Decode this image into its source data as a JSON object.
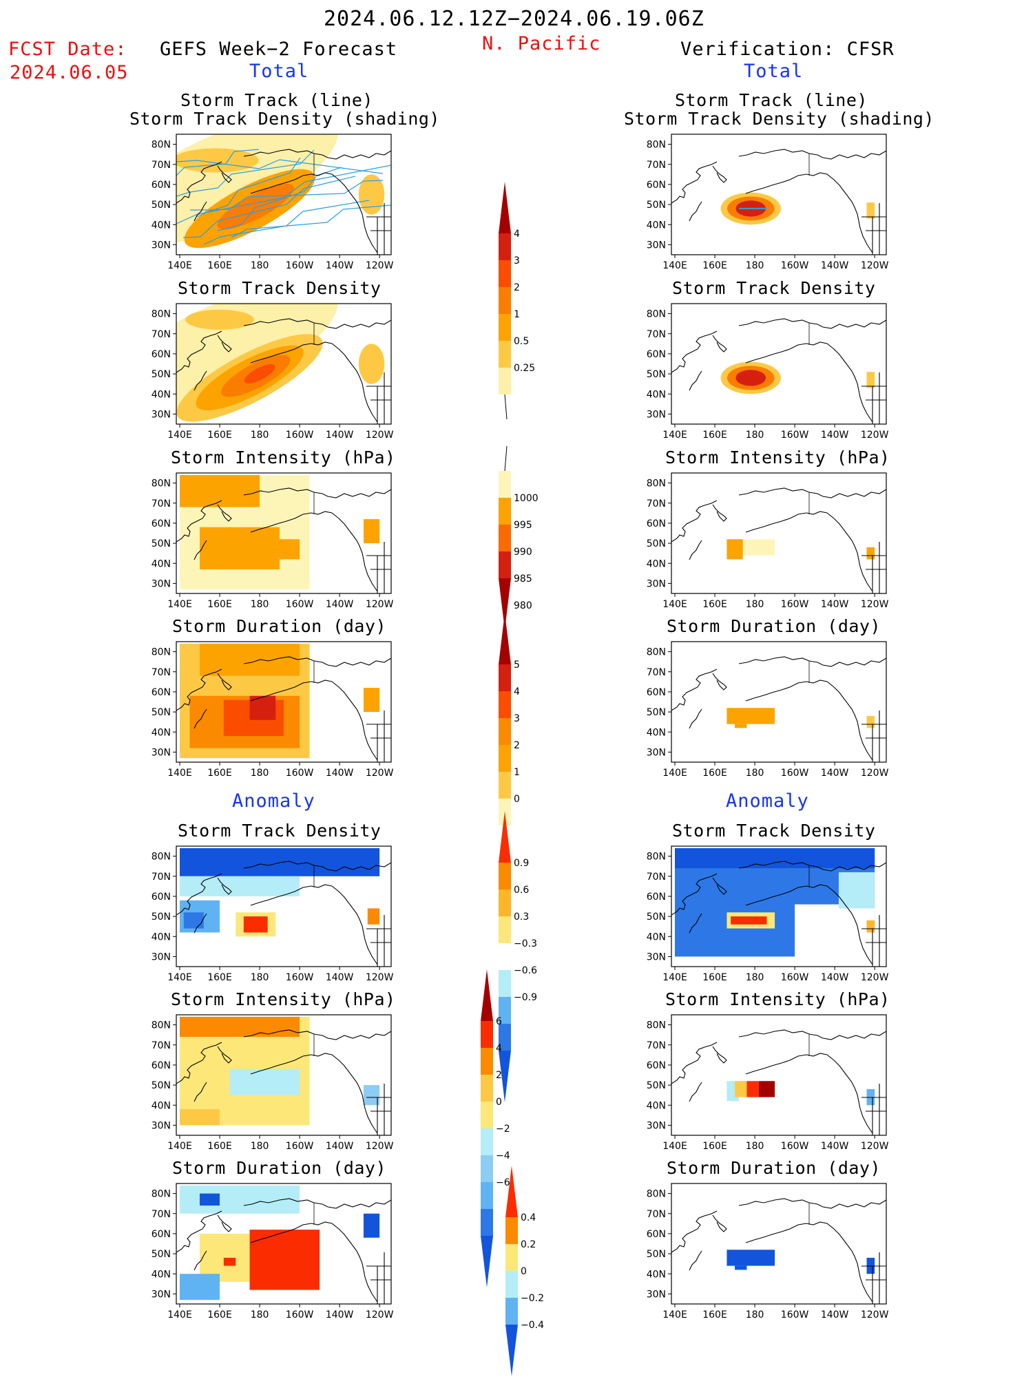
{
  "header": {
    "date_range": "2024.06.12.12Z−2024.06.19.06Z",
    "fcst_label": "FCST Date:",
    "fcst_date": "2024.06.05",
    "left_title": "GEFS Week−2 Forecast",
    "region": "N. Pacific",
    "right_title": "Verification: CFSR",
    "left_total": "Total",
    "right_total": "Total",
    "left_anomaly": "Anomaly",
    "right_anomaly": "Anomaly"
  },
  "panel_titles": {
    "track_line": "Storm Track (line)",
    "track_shading": "Storm Track Density (shading)",
    "density": "Storm Track Density",
    "intensity": "Storm Intensity (hPa)",
    "duration": "Storm Duration (day)"
  },
  "axes": {
    "lat_labels": [
      "80N",
      "70N",
      "60N",
      "50N",
      "40N",
      "30N"
    ],
    "lon_labels": [
      "140E",
      "160E",
      "180",
      "160W",
      "140W",
      "120W"
    ]
  },
  "colorbars": {
    "density": {
      "labels": [
        "4",
        "3",
        "2",
        "1",
        "0.5",
        "0.25"
      ],
      "colors": [
        "#a50000",
        "#d6200f",
        "#fb4d00",
        "#fb7d00",
        "#fda300",
        "#fdc945",
        "#fdf0a8"
      ]
    },
    "intensity": {
      "labels": [
        "1000",
        "995",
        "990",
        "985",
        "980"
      ],
      "colors": [
        "#fdf5b8",
        "#fda300",
        "#fb6a00",
        "#d6200f",
        "#a50000"
      ]
    },
    "duration": {
      "labels": [
        "5",
        "4",
        "3",
        "2",
        "1",
        "0"
      ],
      "colors": [
        "#a50000",
        "#d6200f",
        "#fb4d00",
        "#fb8a00",
        "#fda300",
        "#fdc945",
        "#fdf5b8"
      ]
    },
    "density_anom": {
      "labels": [
        "0.9",
        "0.6",
        "0.3",
        "−0.3",
        "−0.6",
        "−0.9"
      ],
      "colors": [
        "#fb2d00",
        "#fb8a00",
        "#fdb52a",
        "#fde779",
        "#ffffff",
        "#b4ecf8",
        "#5fb3f3",
        "#2d78e6",
        "#1255dc"
      ]
    },
    "intensity_anom": {
      "labels": [
        "6",
        "4",
        "2",
        "0",
        "−2",
        "−4",
        "−6"
      ],
      "colors": [
        "#a50000",
        "#fb2d00",
        "#fb8a00",
        "#fdc945",
        "#fde779",
        "#b4ecf8",
        "#8cccf5",
        "#5fb3f3",
        "#2d78e6",
        "#1255dc"
      ]
    },
    "duration_anom": {
      "labels": [
        "0.4",
        "0.2",
        "0",
        "−0.2",
        "−0.4"
      ],
      "colors": [
        "#fb2d00",
        "#fb8a00",
        "#fde779",
        "#b4ecf8",
        "#5fb3f3",
        "#1255dc"
      ]
    }
  },
  "colors": {
    "track_line": "#2aa0e6",
    "accent_red": "#f20c0c",
    "accent_blue": "#1535f0"
  }
}
